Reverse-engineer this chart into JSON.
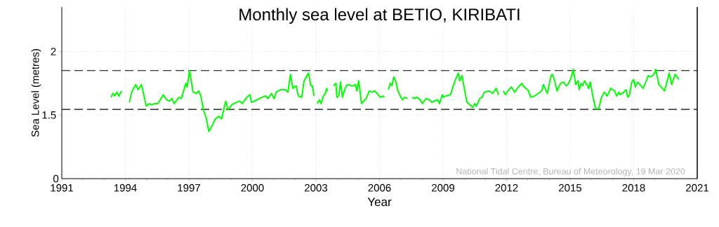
{
  "chart_data": {
    "type": "line",
    "title": "Monthly sea level at BETIO, KIRIBATI",
    "xlabel": "Year",
    "ylabel": "Sea Level (metres)",
    "annotations": [
      "National Tidal Centre, Bureau of Meteorology, 19 Mar 2020",
      "0"
    ],
    "x": [
      1993.33,
      1993.42,
      1993.5,
      1993.6,
      1993.7,
      1993.82,
      1994.0,
      1994.19,
      1994.3,
      1994.49,
      1994.6,
      1994.76,
      1994.87,
      1994.99,
      1995.13,
      1995.26,
      1995.37,
      1995.54,
      1995.65,
      1995.79,
      1995.95,
      1996.09,
      1996.2,
      1996.31,
      1996.53,
      1996.64,
      1996.86,
      1996.92,
      1997.03,
      1997.2,
      1997.36,
      1997.47,
      1997.58,
      1997.69,
      1997.83,
      1997.94,
      1998.08,
      1998.25,
      1998.41,
      1998.54,
      1998.63,
      1998.74,
      1998.85,
      1999.02,
      1999.24,
      1999.41,
      1999.52,
      1999.74,
      1999.88,
      1999.96,
      2000.23,
      2000.45,
      2000.62,
      2000.73,
      2000.9,
      2001.03,
      2001.12,
      2001.34,
      2001.56,
      2001.67,
      2001.8,
      2001.91,
      2002.06,
      2002.17,
      2002.33,
      2002.44,
      2002.65,
      2002.76,
      2002.83,
      2002.91,
      2002.98,
      2003.05,
      2003.17,
      2003.24,
      2003.35,
      2003.44,
      2003.5,
      2003.55,
      2003.7,
      2003.83,
      2003.94,
      2003.99,
      2004.08,
      2004.16,
      2004.25,
      2004.32,
      2004.43,
      2004.55,
      2004.66,
      2004.77,
      2004.86,
      2004.93,
      2005.02,
      2005.15,
      2005.26,
      2005.37,
      2005.52,
      2005.63,
      2005.78,
      2005.93,
      2006.04,
      2006.15,
      2006.23,
      2006.33,
      2006.42,
      2006.51,
      2006.59,
      2006.67,
      2006.76,
      2006.87,
      2006.98,
      2007.09,
      2007.18,
      2007.33,
      2007.43,
      2007.53,
      2007.64,
      2007.77,
      2007.92,
      2008.03,
      2008.19,
      2008.36,
      2008.47,
      2008.58,
      2008.75,
      2008.83,
      2008.97,
      2009.02,
      2009.13,
      2009.35,
      2009.54,
      2009.72,
      2009.79,
      2009.9,
      2009.98,
      2010.13,
      2010.27,
      2010.4,
      2010.49,
      2010.57,
      2010.73,
      2010.84,
      2010.95,
      2011.18,
      2011.34,
      2011.51,
      2011.62,
      2011.73,
      2011.84,
      2011.95,
      2012.06,
      2012.22,
      2012.39,
      2012.5,
      2012.72,
      2012.83,
      2013.0,
      2013.14,
      2013.33,
      2013.66,
      2013.74,
      2013.92,
      2014.1,
      2014.16,
      2014.27,
      2014.38,
      2014.55,
      2014.69,
      2014.82,
      2014.93,
      2015.04,
      2015.15,
      2015.26,
      2015.37,
      2015.43,
      2015.51,
      2015.59,
      2015.68,
      2015.79,
      2015.87,
      2015.95,
      2016.06,
      2016.2,
      2016.35,
      2016.48,
      2016.61,
      2016.75,
      2016.92,
      2017.09,
      2017.2,
      2017.31,
      2017.36,
      2017.53,
      2017.64,
      2017.72,
      2017.8,
      2017.91,
      2018.0,
      2018.08,
      2018.19,
      2018.45,
      2018.69,
      2018.8,
      2018.96,
      2019.04,
      2019.19,
      2019.3,
      2019.46,
      2019.55,
      2019.68,
      2019.79,
      2019.96,
      2020.13
    ],
    "series": [
      {
        "color": "#00ff00",
        "values": [
          1.64,
          1.67,
          1.65,
          1.68,
          1.65,
          1.69,
          null,
          1.6,
          1.68,
          1.74,
          1.7,
          1.74,
          1.66,
          1.57,
          1.59,
          1.58,
          1.59,
          1.59,
          1.62,
          1.66,
          1.62,
          1.61,
          1.63,
          1.59,
          1.64,
          1.63,
          1.75,
          1.72,
          1.85,
          1.68,
          1.67,
          1.69,
          1.64,
          1.54,
          1.47,
          1.37,
          1.41,
          1.47,
          1.49,
          1.47,
          1.53,
          1.61,
          1.54,
          1.58,
          1.6,
          1.61,
          1.59,
          1.64,
          1.66,
          1.6,
          1.62,
          1.64,
          1.65,
          1.63,
          1.67,
          1.63,
          1.68,
          1.7,
          1.7,
          1.68,
          1.82,
          1.71,
          1.73,
          1.65,
          1.64,
          1.77,
          1.83,
          1.73,
          1.73,
          1.65,
          null,
          1.59,
          1.62,
          1.59,
          1.65,
          1.67,
          1.71,
          1.69,
          null,
          1.73,
          1.75,
          1.64,
          1.65,
          1.76,
          1.64,
          1.68,
          1.73,
          1.74,
          1.73,
          1.73,
          1.74,
          1.69,
          1.77,
          1.59,
          1.61,
          1.63,
          1.69,
          1.68,
          1.69,
          1.66,
          1.64,
          1.65,
          1.64,
          null,
          1.7,
          1.75,
          1.73,
          1.8,
          1.77,
          1.69,
          1.65,
          1.62,
          1.64,
          1.63,
          null,
          1.64,
          1.63,
          1.64,
          1.62,
          1.59,
          1.63,
          1.62,
          1.6,
          1.61,
          1.62,
          1.59,
          1.66,
          1.64,
          1.65,
          1.66,
          1.76,
          1.83,
          1.77,
          1.81,
          1.73,
          1.6,
          1.58,
          1.56,
          1.59,
          1.57,
          1.63,
          1.64,
          1.68,
          1.69,
          1.67,
          1.71,
          1.66,
          null,
          1.69,
          1.66,
          1.69,
          1.72,
          1.68,
          1.71,
          1.75,
          1.72,
          1.7,
          1.64,
          1.65,
          1.69,
          1.74,
          1.67,
          1.81,
          1.82,
          1.77,
          1.69,
          1.75,
          1.76,
          1.73,
          1.75,
          1.79,
          1.86,
          1.74,
          1.77,
          1.7,
          1.75,
          1.73,
          1.77,
          1.74,
          1.71,
          1.76,
          1.66,
          1.55,
          1.55,
          1.64,
          1.68,
          1.65,
          1.71,
          1.69,
          1.65,
          1.68,
          1.66,
          1.68,
          1.7,
          1.64,
          1.66,
          1.76,
          1.78,
          1.72,
          1.76,
          1.71,
          1.81,
          1.8,
          1.82,
          1.86,
          1.74,
          1.72,
          1.69,
          1.75,
          1.83,
          1.74,
          1.82,
          1.78
        ]
      }
    ],
    "xlim": [
      1991,
      2021
    ],
    "xticks": [
      1991,
      1994,
      1997,
      2000,
      2003,
      2006,
      2009,
      2012,
      2015,
      2018,
      2021
    ],
    "ylim": [
      1,
      2.35
    ],
    "yticks": [
      1.5,
      2
    ],
    "grid": true,
    "line_style": "solid",
    "ref_lines": [
      {
        "axis": "y",
        "value": 1.85,
        "color": "#000000",
        "line_style": "dashed"
      },
      {
        "axis": "y",
        "value": 1.545,
        "color": "#000000",
        "line_style": "dashed"
      }
    ]
  }
}
